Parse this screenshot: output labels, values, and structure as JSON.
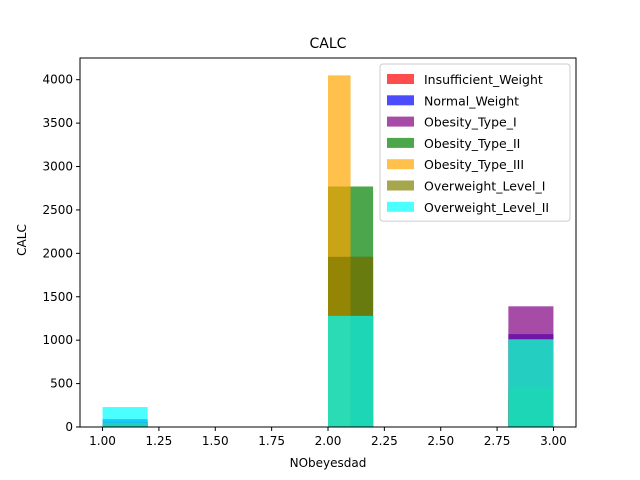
{
  "chart_data": {
    "type": "bar",
    "title": "CALC",
    "xlabel": "NObeyesdad",
    "ylabel": "CALC",
    "xlim": [
      0.9,
      3.1
    ],
    "ylim": [
      0,
      4250
    ],
    "xticks": [
      1.0,
      1.25,
      1.5,
      1.75,
      2.0,
      2.25,
      2.5,
      2.75,
      3.0
    ],
    "xtick_labels": [
      "1.00",
      "1.25",
      "1.50",
      "1.75",
      "2.00",
      "2.25",
      "2.50",
      "2.75",
      "3.00"
    ],
    "yticks": [
      0,
      500,
      1000,
      1500,
      2000,
      2500,
      3000,
      3500,
      4000
    ],
    "ytick_labels": [
      "0",
      "500",
      "1000",
      "1500",
      "2000",
      "2500",
      "3000",
      "3500",
      "4000"
    ],
    "grid": false,
    "legend_position": "top-right",
    "bin_edges": [
      1.0,
      1.2,
      1.4,
      1.6,
      1.8,
      2.0,
      2.2,
      2.4,
      2.6,
      2.8,
      3.0
    ],
    "series": [
      {
        "name": "Insufficient_Weight",
        "color": "#ff0000",
        "opacity": 0.7,
        "bars": [
          {
            "x0": 1.0,
            "x1": 1.2,
            "value": 60
          },
          {
            "x0": 2.0,
            "x1": 2.2,
            "value": 1280
          },
          {
            "x0": 2.8,
            "x1": 3.0,
            "value": 330
          }
        ]
      },
      {
        "name": "Normal_Weight",
        "color": "#0000ff",
        "opacity": 0.7,
        "bars": [
          {
            "x0": 1.0,
            "x1": 1.2,
            "value": 90
          },
          {
            "x0": 2.0,
            "x1": 2.2,
            "value": 1280
          },
          {
            "x0": 2.8,
            "x1": 3.0,
            "value": 1070
          }
        ]
      },
      {
        "name": "Obesity_Type_I",
        "color": "#800080",
        "opacity": 0.7,
        "bars": [
          {
            "x0": 1.0,
            "x1": 1.2,
            "value": 30
          },
          {
            "x0": 2.0,
            "x1": 2.2,
            "value": 1960
          },
          {
            "x0": 2.8,
            "x1": 3.0,
            "value": 1390
          }
        ]
      },
      {
        "name": "Obesity_Type_II",
        "color": "#008000",
        "opacity": 0.7,
        "bars": [
          {
            "x0": 1.0,
            "x1": 1.2,
            "value": 20
          },
          {
            "x0": 2.0,
            "x1": 2.2,
            "value": 2770
          },
          {
            "x0": 2.8,
            "x1": 3.0,
            "value": 450
          }
        ]
      },
      {
        "name": "Obesity_Type_III",
        "color": "#ffa500",
        "opacity": 0.7,
        "bars": [
          {
            "x0": 1.0,
            "x1": 1.2,
            "value": 0
          },
          {
            "x0": 2.0,
            "x1": 2.1,
            "value": 4050
          },
          {
            "x0": 2.8,
            "x1": 3.0,
            "value": 0
          }
        ]
      },
      {
        "name": "Overweight_Level_I",
        "color": "#808000",
        "opacity": 0.7,
        "bars": [
          {
            "x0": 1.0,
            "x1": 1.2,
            "value": 50
          },
          {
            "x0": 2.0,
            "x1": 2.2,
            "value": 1960
          },
          {
            "x0": 2.8,
            "x1": 3.0,
            "value": 1010
          }
        ]
      },
      {
        "name": "Overweight_Level_II",
        "color": "#00ffff",
        "opacity": 0.7,
        "bars": [
          {
            "x0": 1.0,
            "x1": 1.2,
            "value": 230
          },
          {
            "x0": 2.0,
            "x1": 2.2,
            "value": 1280
          },
          {
            "x0": 2.8,
            "x1": 3.0,
            "value": 1010
          }
        ]
      }
    ]
  }
}
